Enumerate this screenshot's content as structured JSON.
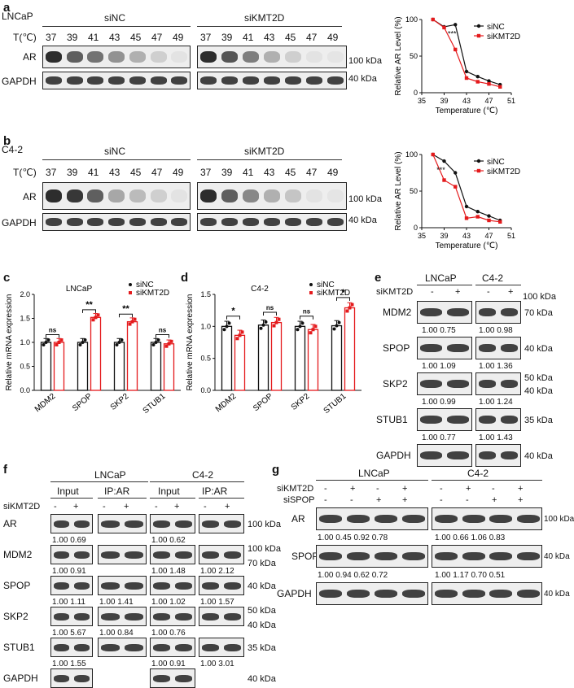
{
  "panel_a": {
    "letter": "a",
    "cell": "LNCaP",
    "temp_label": "T(℃)",
    "group1": "siNC",
    "group2": "siKMT2D",
    "temps": [
      "37",
      "39",
      "41",
      "43",
      "45",
      "47",
      "49"
    ],
    "row_ar": "AR",
    "row_gapdh": "GAPDH",
    "mw_ar": "100 kDa",
    "mw_gapdh": "40 kDa",
    "ar_si_nc": [
      0.95,
      0.7,
      0.6,
      0.45,
      0.3,
      0.15,
      0.05
    ],
    "ar_si_kmt": [
      0.95,
      0.75,
      0.55,
      0.3,
      0.15,
      0.05,
      0.02
    ]
  },
  "panel_b": {
    "letter": "b",
    "cell": "C4-2",
    "temp_label": "T(℃)",
    "group1": "siNC",
    "group2": "siKMT2D",
    "temps": [
      "37",
      "39",
      "41",
      "43",
      "45",
      "47",
      "49"
    ],
    "row_ar": "AR",
    "row_gapdh": "GAPDH",
    "mw_ar": "100 kDa",
    "mw_gapdh": "40 kDa",
    "ar_si_nc": [
      0.95,
      0.9,
      0.7,
      0.35,
      0.25,
      0.15,
      0.05
    ],
    "ar_si_kmt": [
      0.95,
      0.7,
      0.5,
      0.3,
      0.2,
      0.05,
      0.02
    ]
  },
  "chart_data": [
    {
      "type": "line",
      "xlabel": "Temperature (℃)",
      "ylabel": "Relative AR Level (%)",
      "xlim": [
        35,
        51
      ],
      "ylim": [
        0,
        100
      ],
      "xticks": [
        35,
        39,
        43,
        47,
        51
      ],
      "yticks": [
        0,
        50,
        100
      ],
      "x": [
        37,
        39,
        41,
        43,
        45,
        47,
        49
      ],
      "series": [
        {
          "name": "siNC",
          "color": "#111111",
          "values": [
            100,
            90,
            93,
            29,
            22,
            16,
            11
          ]
        },
        {
          "name": "siKMT2D",
          "color": "#e41a1c",
          "values": [
            100,
            89,
            59,
            20,
            15,
            12,
            8
          ]
        }
      ],
      "annotation": "***",
      "annotation_x": 41,
      "legend": "top-right"
    },
    {
      "type": "line",
      "xlabel": "Temperature (℃)",
      "ylabel": "Relative AR Level (%)",
      "xlim": [
        35,
        51
      ],
      "ylim": [
        0,
        100
      ],
      "xticks": [
        35,
        39,
        43,
        47,
        51
      ],
      "yticks": [
        0,
        50,
        100
      ],
      "x": [
        37,
        39,
        41,
        43,
        45,
        47,
        49
      ],
      "series": [
        {
          "name": "siNC",
          "color": "#111111",
          "values": [
            100,
            91,
            75,
            29,
            22,
            16,
            10
          ]
        },
        {
          "name": "siKMT2D",
          "color": "#e41a1c",
          "values": [
            100,
            65,
            56,
            13,
            15,
            10,
            8
          ]
        }
      ],
      "annotation": "***",
      "annotation_x": 39,
      "legend": "top-right"
    },
    {
      "type": "bar",
      "title": "LNCaP",
      "ylabel": "Relative mRNA expression",
      "ylim": [
        0,
        2.0
      ],
      "yticks": [
        "0.0",
        "0.5",
        "1.0",
        "1.5",
        "2.0"
      ],
      "categories": [
        "MDM2",
        "SPOP",
        "SKP2",
        "STUB1"
      ],
      "series": [
        {
          "name": "siNC",
          "color": "#111111",
          "values": [
            1.0,
            1.0,
            1.0,
            1.0
          ]
        },
        {
          "name": "siKMT2D",
          "color": "#e41a1c",
          "values": [
            1.0,
            1.52,
            1.43,
            0.97
          ]
        }
      ],
      "significance": [
        "ns",
        "**",
        "**",
        "ns"
      ],
      "legend": "top-right"
    },
    {
      "type": "bar",
      "title": "C4-2",
      "ylabel": "Relative mRNA expression",
      "ylim": [
        0,
        1.5
      ],
      "yticks": [
        "0.0",
        "0.5",
        "1.0",
        "1.5"
      ],
      "categories": [
        "MDM2",
        "SPOP",
        "SKP2",
        "STUB1"
      ],
      "series": [
        {
          "name": "siNC",
          "color": "#111111",
          "values": [
            1.0,
            1.02,
            1.0,
            1.01
          ]
        },
        {
          "name": "siKMT2D",
          "color": "#e41a1c",
          "values": [
            0.86,
            1.06,
            0.95,
            1.29
          ]
        }
      ],
      "significance": [
        "*",
        "ns",
        "ns",
        "*"
      ],
      "legend": "top-right"
    }
  ],
  "panel_e": {
    "letter": "e",
    "cell1": "LNCaP",
    "cell2": "C4-2",
    "treat": "siKMT2D",
    "minus": "-",
    "plus": "+",
    "mw_top": "100 kDa",
    "rows": [
      {
        "label": "MDM2",
        "mw": "70 kDa",
        "v1": "1.00 0.75",
        "v2": "1.00 0.98"
      },
      {
        "label": "SPOP",
        "mw": "40 kDa",
        "v1": "1.00 1.09",
        "v2": "1.00 1.36"
      },
      {
        "label": "SKP2",
        "mw": "50 kDa",
        "mw2": "40 kDa",
        "v1": "1.00 0.99",
        "v2": "1.00 1.24"
      },
      {
        "label": "STUB1",
        "mw": "35 kDa",
        "v1": "1.00 0.77",
        "v2": "1.00 1.43"
      },
      {
        "label": "GAPDH",
        "mw": "40 kDa"
      }
    ]
  },
  "panel_f": {
    "letter": "f",
    "cell1": "LNCaP",
    "cell2": "C4-2",
    "input": "Input",
    "ip": "IP:AR",
    "treat": "siKMT2D",
    "minus": "-",
    "plus": "+",
    "rows": [
      {
        "label": "AR",
        "mw": "100 kDa",
        "v": [
          "1.00 0.69",
          "",
          "1.00 0.62",
          ""
        ]
      },
      {
        "label": "MDM2",
        "mw": "100 kDa",
        "mw2": "70 kDa",
        "v": [
          "1.00 0.91",
          "",
          "1.00 1.48",
          "1.00 2.12"
        ]
      },
      {
        "label": "SPOP",
        "mw": "40 kDa",
        "v": [
          "1.00 1.11",
          "1.00 1.41",
          "1.00 1.02",
          "1.00 1.57"
        ]
      },
      {
        "label": "SKP2",
        "mw": "50 kDa",
        "mw2": "40 kDa",
        "v": [
          "1.00 5.67",
          "1.00 0.84",
          "1.00 0.76",
          ""
        ]
      },
      {
        "label": "STUB1",
        "mw": "35 kDa",
        "v": [
          "1.00 1.55",
          "",
          "1.00 0.91",
          "1.00 3.01"
        ]
      },
      {
        "label": "GAPDH",
        "mw": "40 kDa"
      }
    ]
  },
  "panel_g": {
    "letter": "g",
    "cell1": "LNCaP",
    "cell2": "C4-2",
    "treat1": "siKMT2D",
    "treat2": "siSPOP",
    "row1": [
      "-",
      "+",
      "-",
      "+",
      "-",
      "+",
      "-",
      "+"
    ],
    "row2": [
      "-",
      "-",
      "+",
      "+",
      "-",
      "-",
      "+",
      "+"
    ],
    "rows": [
      {
        "label": "AR",
        "mw": "100 kDa",
        "v1": "1.00 0.45 0.92 0.78",
        "v2": "1.00 0.66 1.06 0.83"
      },
      {
        "label": "SPOP",
        "mw": "40 kDa",
        "v1": "1.00 0.94 0.62 0.72",
        "v2": "1.00 1.17 0.70 0.51"
      },
      {
        "label": "GAPDH",
        "mw": "40 kDa"
      }
    ]
  }
}
